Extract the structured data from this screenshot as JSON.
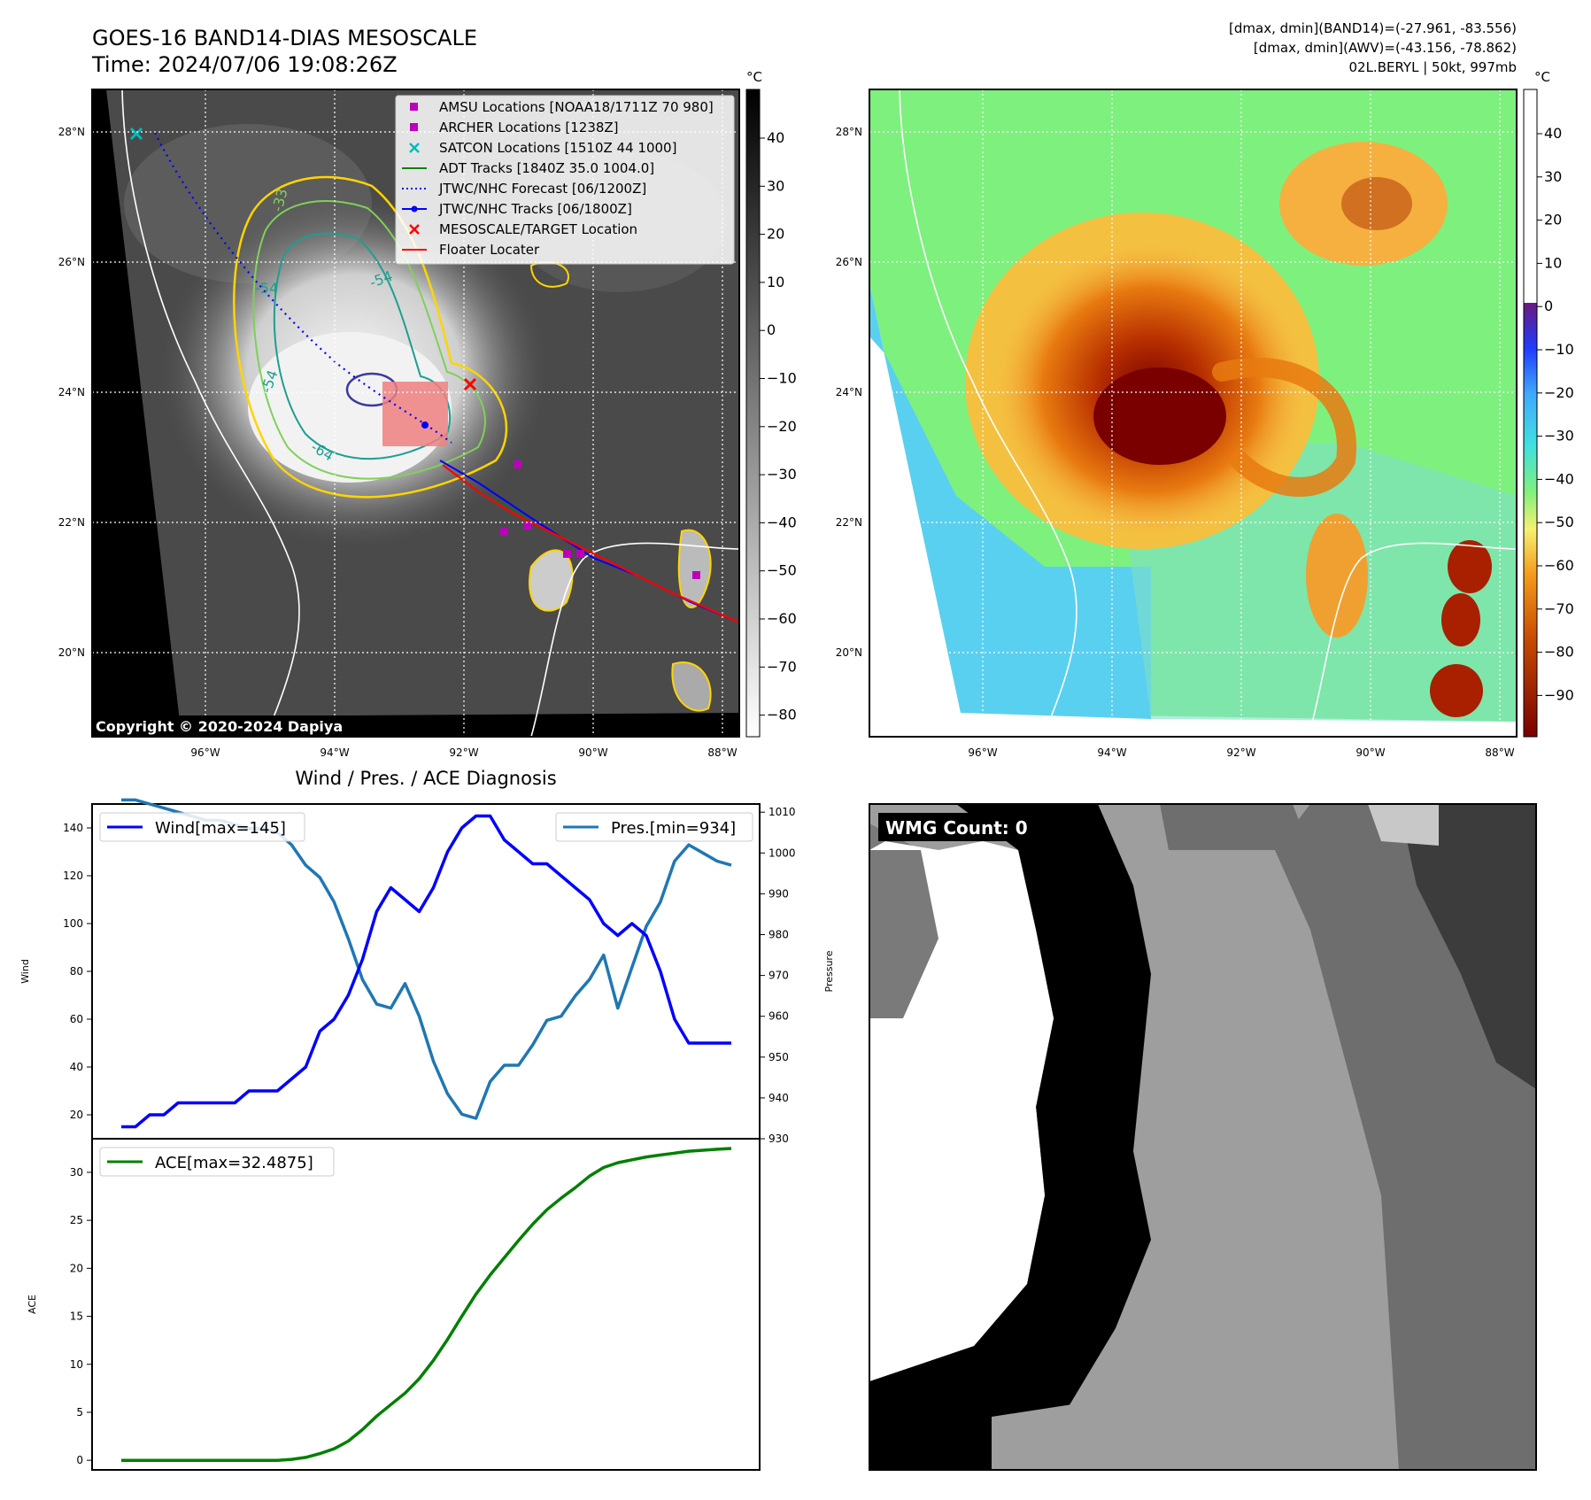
{
  "header": {
    "title_line1": "GOES-16 BAND14-DIAS MESOSCALE",
    "title_line2": "Time: 2024/07/06 19:08:26Z",
    "info_line1": "[dmax, dmin](BAND14)=(-27.961, -83.556)",
    "info_line2": "[dmax, dmin](AWV)=(-43.156, -78.862)",
    "info_line3": "02L.BERYL | 50kt, 997mb"
  },
  "ir_map": {
    "lat_labels": [
      "28°N",
      "26°N",
      "24°N",
      "22°N",
      "20°N"
    ],
    "lon_labels": [
      "96°W",
      "94°W",
      "92°W",
      "90°W",
      "88°W"
    ],
    "copyright": "Copyright © 2020-2024 Dapiya",
    "contour_labels": [
      "-54",
      "-54",
      "-64",
      "-33",
      "-54"
    ],
    "legend": [
      {
        "label": "AMSU Locations [NOAA18/1711Z 70 980]",
        "symbol": "square",
        "color": "#bb00bb"
      },
      {
        "label": "ARCHER Locations [1238Z]",
        "symbol": "square",
        "color": "#bb00bb"
      },
      {
        "label": "SATCON Locations [1510Z 44 1000]",
        "symbol": "x",
        "color": "#00bbbb"
      },
      {
        "label": "ADT Tracks [1840Z 35.0 1004.0]",
        "symbol": "line",
        "color": "#008000"
      },
      {
        "label": "JTWC/NHC Forecast [06/1200Z]",
        "symbol": "dotted",
        "color": "#0000ff"
      },
      {
        "label": "JTWC/NHC Tracks [06/1800Z]",
        "symbol": "line-dot",
        "color": "#0000ff"
      },
      {
        "label": "MESOSCALE/TARGET Location",
        "symbol": "x",
        "color": "#ff0000"
      },
      {
        "label": "Floater Locater",
        "symbol": "line",
        "color": "#ff0000"
      }
    ]
  },
  "colorbar_gray": {
    "unit": "°C",
    "ticks": [
      "40",
      "30",
      "20",
      "10",
      "0",
      "−10",
      "−20",
      "−30",
      "−40",
      "−50",
      "−60",
      "−70",
      "−80"
    ]
  },
  "awv_map": {
    "lat_labels": [
      "28°N",
      "26°N",
      "24°N",
      "22°N",
      "20°N"
    ],
    "lon_labels": [
      "96°W",
      "94°W",
      "92°W",
      "90°W",
      "88°W"
    ]
  },
  "colorbar_awv": {
    "unit": "°C",
    "ticks": [
      "40",
      "30",
      "20",
      "10",
      "0",
      "−10",
      "−20",
      "−30",
      "−40",
      "−50",
      "−60",
      "−70",
      "−80",
      "−90"
    ]
  },
  "wmg": {
    "label": "WMG Count: 0"
  },
  "chart_data": [
    {
      "type": "line",
      "title": "Wind / Pres. / ACE Diagnosis",
      "ylabel": "Wind",
      "y2label": "Pressure",
      "ylim": [
        10,
        150
      ],
      "y2lim": [
        930,
        1012
      ],
      "yticks": [
        20,
        40,
        60,
        80,
        100,
        120,
        140
      ],
      "y2ticks": [
        930,
        940,
        950,
        960,
        970,
        980,
        990,
        1000,
        1010
      ],
      "series": [
        {
          "name": "Wind[max=145]",
          "color": "#0000ff",
          "values": [
            15,
            15,
            20,
            20,
            25,
            25,
            25,
            25,
            25,
            30,
            30,
            30,
            35,
            40,
            55,
            60,
            70,
            85,
            105,
            115,
            110,
            105,
            115,
            130,
            140,
            145,
            145,
            135,
            130,
            125,
            125,
            120,
            115,
            110,
            100,
            95,
            100,
            95,
            80,
            60,
            50,
            50,
            50,
            50
          ]
        },
        {
          "name": "Pres.[min=934]",
          "color": "#1f77b4",
          "values": [
            1013,
            1013,
            1012,
            1011,
            1010,
            1009,
            1008,
            1008,
            1007,
            1006,
            1006,
            1005,
            1002,
            997,
            994,
            988,
            979,
            969,
            963,
            962,
            968,
            960,
            949,
            941,
            936,
            935,
            944,
            948,
            948,
            953,
            959,
            960,
            965,
            969,
            975,
            962,
            972,
            982,
            988,
            998,
            1002,
            1000,
            998,
            997
          ]
        }
      ]
    },
    {
      "type": "line",
      "ylabel": "ACE",
      "ylim": [
        -1,
        33.5
      ],
      "yticks": [
        0,
        5,
        10,
        15,
        20,
        25,
        30
      ],
      "series": [
        {
          "name": "ACE[max=32.4875]",
          "color": "#008000",
          "values": [
            0,
            0,
            0,
            0,
            0,
            0,
            0,
            0,
            0,
            0,
            0,
            0,
            0.1,
            0.3,
            0.7,
            1.2,
            2.0,
            3.2,
            4.6,
            5.8,
            7.0,
            8.5,
            10.4,
            12.6,
            15.0,
            17.3,
            19.3,
            21.1,
            22.9,
            24.6,
            26.1,
            27.3,
            28.4,
            29.6,
            30.5,
            31.0,
            31.3,
            31.6,
            31.8,
            32.0,
            32.2,
            32.3,
            32.4,
            32.4875
          ]
        }
      ]
    }
  ]
}
